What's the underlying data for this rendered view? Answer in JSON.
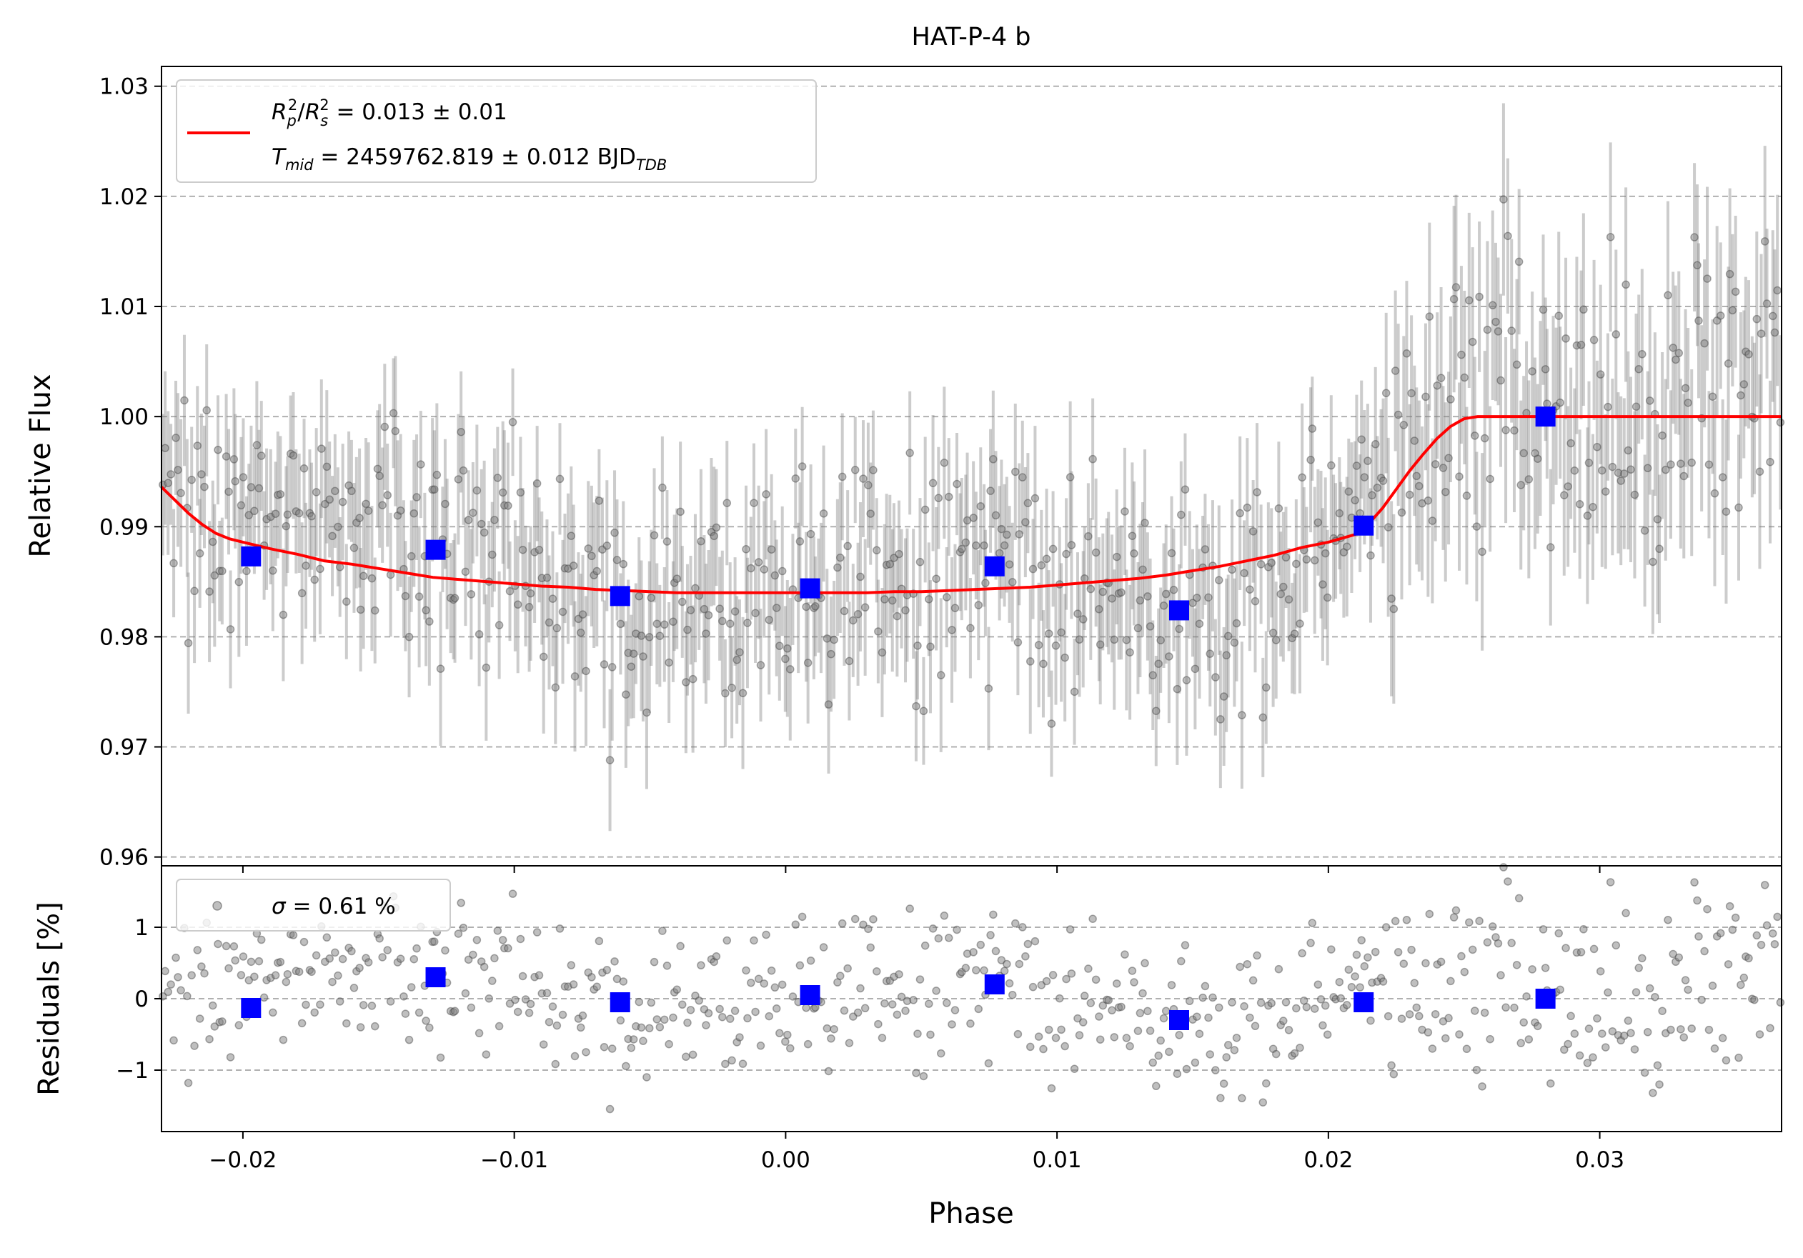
{
  "chart_data": {
    "type": "scatter",
    "title": "HAT-P-4 b",
    "main_panel": {
      "ylabel": "Relative Flux",
      "xlim": [
        -0.023,
        0.0367
      ],
      "ylim": [
        0.9592,
        1.0318
      ],
      "x_ticks": [
        -0.02,
        -0.01,
        0.0,
        0.01,
        0.02,
        0.03
      ],
      "y_ticks": [
        0.96,
        0.97,
        0.98,
        0.99,
        1.0,
        1.01,
        1.02,
        1.03
      ],
      "y_tick_labels": [
        "0.96",
        "0.97",
        "0.98",
        "0.99",
        "1.00",
        "1.01",
        "1.02",
        "1.03"
      ],
      "grid": "horizontal dashed",
      "legend": {
        "location": "upper-left",
        "entries": [
          {
            "line1": "Rp²/Rs² = 0.013 ± 0.01",
            "line2": "Tmid = 2459762.819 ± 0.012 BJD_TDB",
            "color": "#ff0000"
          }
        ]
      },
      "legend_parts": {
        "line1_math": {
          "R": "R",
          "p": "p",
          "sq": "2",
          "slash": "/",
          "s": "s",
          "rest": " = 0.013 ± 0.01"
        },
        "line2_math": {
          "T": "T",
          "mid": "mid",
          "rest": " = 2459762.819 ± 0.012 BJD",
          "sub": "TDB"
        }
      },
      "series": [
        {
          "name": "model",
          "style": "line",
          "color": "#ff0000",
          "x": [
            -0.023,
            -0.0225,
            -0.022,
            -0.0215,
            -0.021,
            -0.0205,
            -0.02,
            -0.019,
            -0.018,
            -0.017,
            -0.016,
            -0.015,
            -0.014,
            -0.013,
            -0.012,
            -0.011,
            -0.01,
            -0.009,
            -0.008,
            -0.007,
            -0.006,
            -0.005,
            -0.004,
            -0.003,
            -0.002,
            -0.001,
            0.0,
            0.001,
            0.002,
            0.003,
            0.004,
            0.005,
            0.006,
            0.007,
            0.008,
            0.009,
            0.01,
            0.011,
            0.012,
            0.013,
            0.014,
            0.015,
            0.016,
            0.017,
            0.018,
            0.019,
            0.02,
            0.021,
            0.0215,
            0.022,
            0.0225,
            0.023,
            0.0235,
            0.024,
            0.0245,
            0.025,
            0.0255,
            0.026,
            0.0265,
            0.027,
            0.028,
            0.03,
            0.032,
            0.034,
            0.0367
          ],
          "y": [
            0.9936,
            0.9924,
            0.9912,
            0.9902,
            0.9894,
            0.9889,
            0.9886,
            0.988,
            0.9875,
            0.9869,
            0.9866,
            0.9862,
            0.9858,
            0.9854,
            0.9852,
            0.985,
            0.9848,
            0.9846,
            0.9845,
            0.9843,
            0.9842,
            0.9841,
            0.984,
            0.984,
            0.984,
            0.984,
            0.984,
            0.984,
            0.984,
            0.984,
            0.9841,
            0.9841,
            0.9842,
            0.9843,
            0.9844,
            0.9845,
            0.9847,
            0.9849,
            0.9851,
            0.9853,
            0.9856,
            0.986,
            0.9864,
            0.9869,
            0.9874,
            0.9881,
            0.9886,
            0.9893,
            0.9903,
            0.9917,
            0.9934,
            0.9951,
            0.9966,
            0.998,
            0.9991,
            0.9998,
            1.0,
            1.0,
            1.0,
            1.0,
            1.0,
            1.0,
            1.0,
            1.0,
            1.0
          ]
        },
        {
          "name": "binned",
          "style": "square",
          "color": "#0000ff",
          "x": [
            -0.0197,
            -0.0129,
            -0.0061,
            0.0009,
            0.0077,
            0.0145,
            0.0213,
            0.028
          ],
          "y": [
            0.9873,
            0.9879,
            0.9837,
            0.9844,
            0.9864,
            0.9824,
            0.9901,
            1.0
          ]
        }
      ],
      "raw_data_description_free": true,
      "raw_points_color": "#808080"
    },
    "residual_panel": {
      "ylabel": "Residuals [%]",
      "xlabel": "Phase",
      "ylim": [
        -1.86,
        1.86
      ],
      "y_ticks": [
        -1,
        0,
        1
      ],
      "y_tick_labels": [
        "−1",
        "0",
        "1"
      ],
      "x_tick_labels": [
        "−0.02",
        "−0.01",
        "0.00",
        "0.01",
        "0.02",
        "0.03"
      ],
      "grid": "horizontal dashed",
      "legend": {
        "location": "upper-left",
        "sigma_symbol": "σ",
        "label_rest": " = 0.61 %"
      },
      "binned_series": {
        "color": "#0000ff",
        "x": [
          -0.0197,
          -0.0129,
          -0.0061,
          0.0009,
          0.0077,
          0.0145,
          0.0213,
          0.028
        ],
        "y": [
          -0.13,
          0.3,
          -0.05,
          0.05,
          0.2,
          -0.3,
          -0.05,
          0.0
        ]
      },
      "scatter_sigma": 0.61
    }
  }
}
